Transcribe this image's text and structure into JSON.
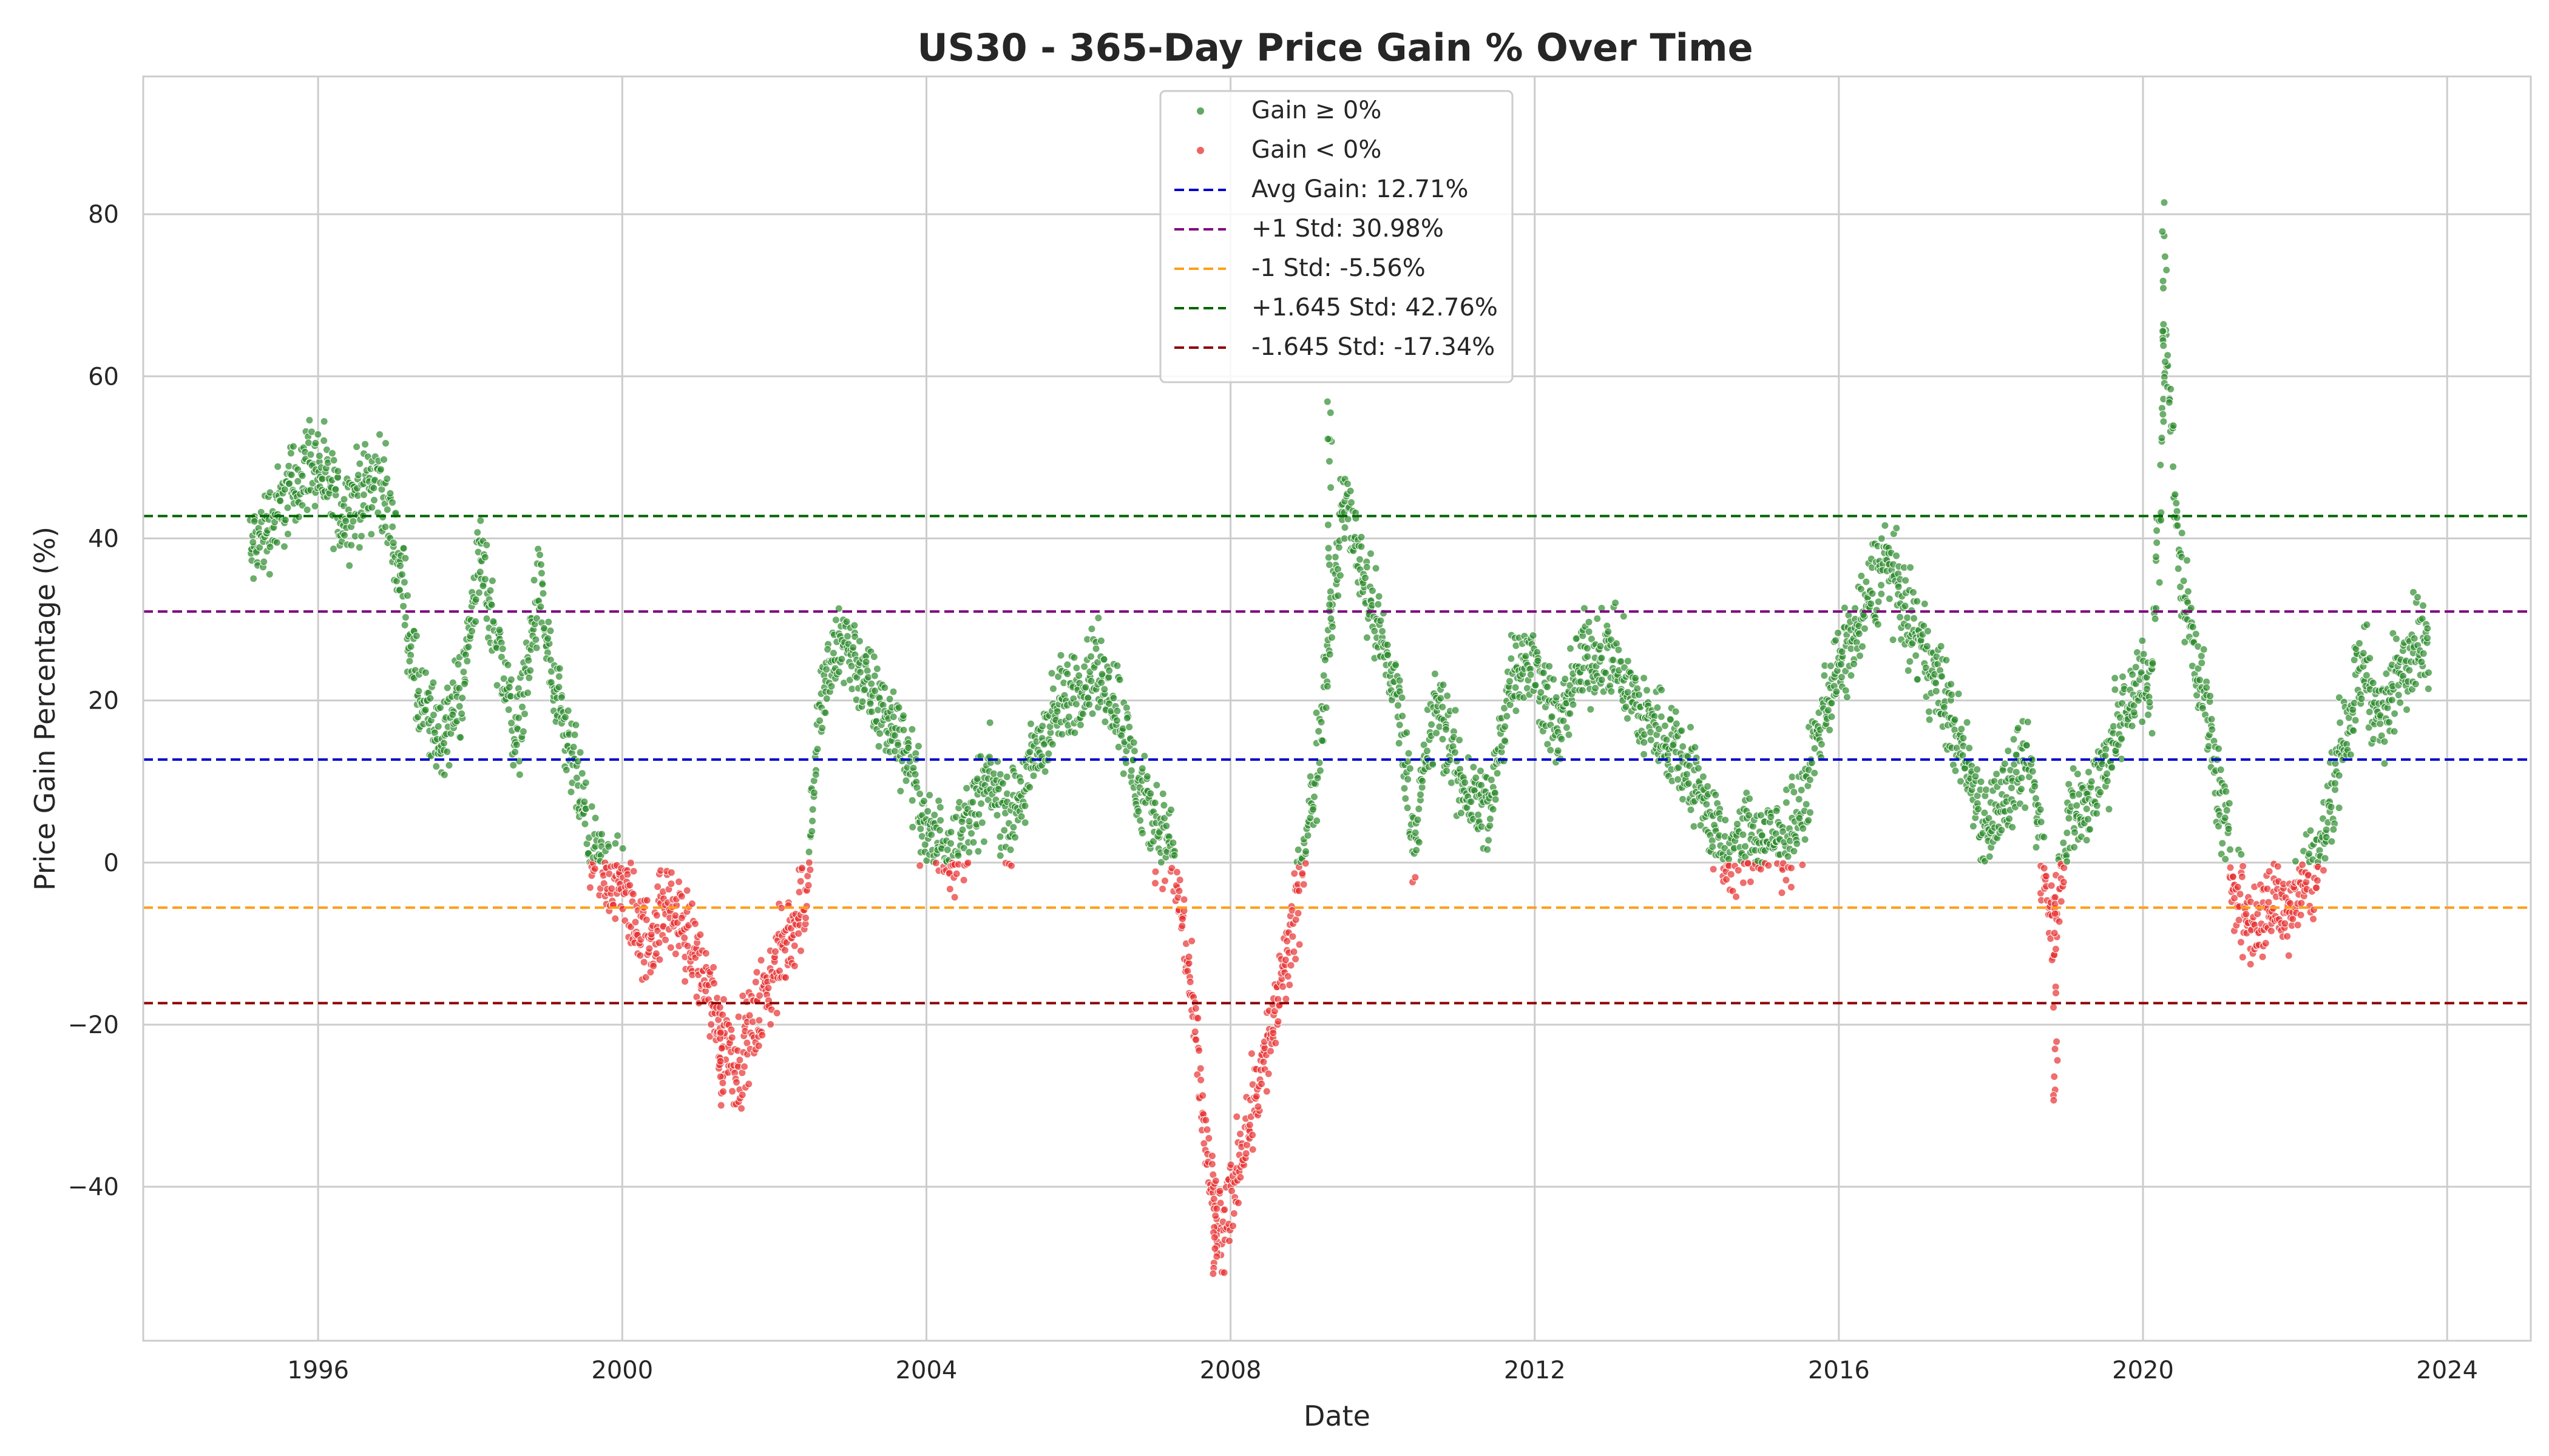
{
  "chart_data": {
    "type": "scatter",
    "title": "US30 - 365-Day Price Gain % Over Time",
    "xlabel": "Date",
    "ylabel": "Price Gain Percentage (%)",
    "xlim": [
      1993.7,
      2025.1
    ],
    "ylim": [
      -59,
      97
    ],
    "x_ticks": [
      "1996",
      "2000",
      "2004",
      "2008",
      "2012",
      "2016",
      "2020",
      "2024"
    ],
    "y_ticks": [
      -40,
      -20,
      0,
      20,
      40,
      60,
      80
    ],
    "grid": true,
    "legend_position": "top-center",
    "colors": {
      "positive": "#2e8b2e",
      "negative": "#e83030"
    },
    "point_sampling_step_years": 0.02,
    "gain_profile": [
      [
        "1995.1",
        38
      ],
      [
        "1995.5",
        44
      ],
      [
        "1995.9",
        50
      ],
      [
        "1996.3",
        43
      ],
      [
        "1996.8",
        48
      ],
      [
        "1997.1",
        35
      ],
      [
        "1997.3",
        20
      ],
      [
        "1997.6",
        15
      ],
      [
        "1997.9",
        22
      ],
      [
        "1998.1",
        38
      ],
      [
        "1998.4",
        25
      ],
      [
        "1998.6",
        15
      ],
      [
        "1998.9",
        34
      ],
      [
        "1999.1",
        20
      ],
      [
        "1999.4",
        10
      ],
      [
        "1999.6",
        0
      ],
      [
        "2000.0",
        -3
      ],
      [
        "2000.3",
        -10
      ],
      [
        "2000.6",
        -5
      ],
      [
        "2000.9",
        -10
      ],
      [
        "2001.2",
        -18
      ],
      [
        "2001.5",
        -25
      ],
      [
        "2001.8",
        -18
      ],
      [
        "2002.1",
        -11
      ],
      [
        "2002.4",
        -4
      ],
      [
        "2002.6",
        20
      ],
      [
        "2002.9",
        28
      ],
      [
        "2003.3",
        20
      ],
      [
        "2003.7",
        15
      ],
      [
        "2004.0",
        3
      ],
      [
        "2004.4",
        2
      ],
      [
        "2004.8",
        10
      ],
      [
        "2005.1",
        5
      ],
      [
        "2005.5",
        15
      ],
      [
        "2005.8",
        20
      ],
      [
        "2006.2",
        24
      ],
      [
        "2006.5",
        20
      ],
      [
        "2006.8",
        8
      ],
      [
        "2007.2",
        2
      ],
      [
        "2007.4",
        -10
      ],
      [
        "2007.7",
        -38
      ],
      [
        "2007.9",
        -47
      ],
      [
        "2008.1",
        -36
      ],
      [
        "2008.5",
        -22
      ],
      [
        "2008.8",
        -9
      ],
      [
        "2009.1",
        10
      ],
      [
        "2009.3",
        30
      ],
      [
        "2009.5",
        45
      ],
      [
        "2009.8",
        33
      ],
      [
        "2010.2",
        20
      ],
      [
        "2010.4",
        3
      ],
      [
        "2010.7",
        20
      ],
      [
        "2011.0",
        10
      ],
      [
        "2011.4",
        6
      ],
      [
        "2011.7",
        25
      ],
      [
        "2012.0",
        24
      ],
      [
        "2012.3",
        16
      ],
      [
        "2012.6",
        25
      ],
      [
        "2013.0",
        26
      ],
      [
        "2013.4",
        18
      ],
      [
        "2013.8",
        15
      ],
      [
        "2014.2",
        8
      ],
      [
        "2014.5",
        0
      ],
      [
        "2014.8",
        3
      ],
      [
        "2015.2",
        2
      ],
      [
        "2015.5",
        6
      ],
      [
        "2015.8",
        20
      ],
      [
        "2016.2",
        28
      ],
      [
        "2016.6",
        38
      ],
      [
        "2016.9",
        30
      ],
      [
        "2017.3",
        22
      ],
      [
        "2017.6",
        14
      ],
      [
        "2017.9",
        5
      ],
      [
        "2018.2",
        8
      ],
      [
        "2018.5",
        13
      ],
      [
        "2018.8",
        -8
      ],
      [
        "2019.0",
        5
      ],
      [
        "2019.3",
        8
      ],
      [
        "2019.6",
        15
      ],
      [
        "2019.9",
        22
      ],
      [
        "2020.1",
        22
      ],
      [
        "2020.2",
        42
      ],
      [
        "2020.3",
        65
      ],
      [
        "2020.45",
        38
      ],
      [
        "2020.8",
        20
      ],
      [
        "2021.0",
        8
      ],
      [
        "2021.2",
        -3
      ],
      [
        "2021.4",
        -8
      ],
      [
        "2021.7",
        -5
      ],
      [
        "2021.9",
        -5
      ],
      [
        "2022.1",
        -2
      ],
      [
        "2022.3",
        0
      ],
      [
        "2022.6",
        15
      ],
      [
        "2022.9",
        25
      ],
      [
        "2023.1",
        17
      ],
      [
        "2023.4",
        25
      ],
      [
        "2023.6",
        28
      ],
      [
        "2023.75",
        25
      ]
    ],
    "spikes": [
      [
        "2009.3",
        62
      ],
      [
        "2018.85",
        -30
      ],
      [
        "2020.28",
        90
      ],
      [
        "2007.8",
        -52
      ],
      [
        "2001.3",
        -30
      ]
    ],
    "series": [
      {
        "name": "Gain ≥ 0%",
        "kind": "scatter",
        "color": "#2e8b2e"
      },
      {
        "name": "Gain < 0%",
        "kind": "scatter",
        "color": "#e83030"
      }
    ],
    "reference_lines": [
      {
        "name": "Avg Gain: 12.71%",
        "y": 12.71,
        "color": "#0000cc"
      },
      {
        "name": "+1 Std: 30.98%",
        "y": 30.98,
        "color": "#800080"
      },
      {
        "name": "-1 Std: -5.56%",
        "y": -5.56,
        "color": "#ff9f1a"
      },
      {
        "name": "+1.645 Std: 42.76%",
        "y": 42.76,
        "color": "#006400"
      },
      {
        "name": "-1.645 Std: -17.34%",
        "y": -17.34,
        "color": "#8b0000"
      }
    ]
  }
}
